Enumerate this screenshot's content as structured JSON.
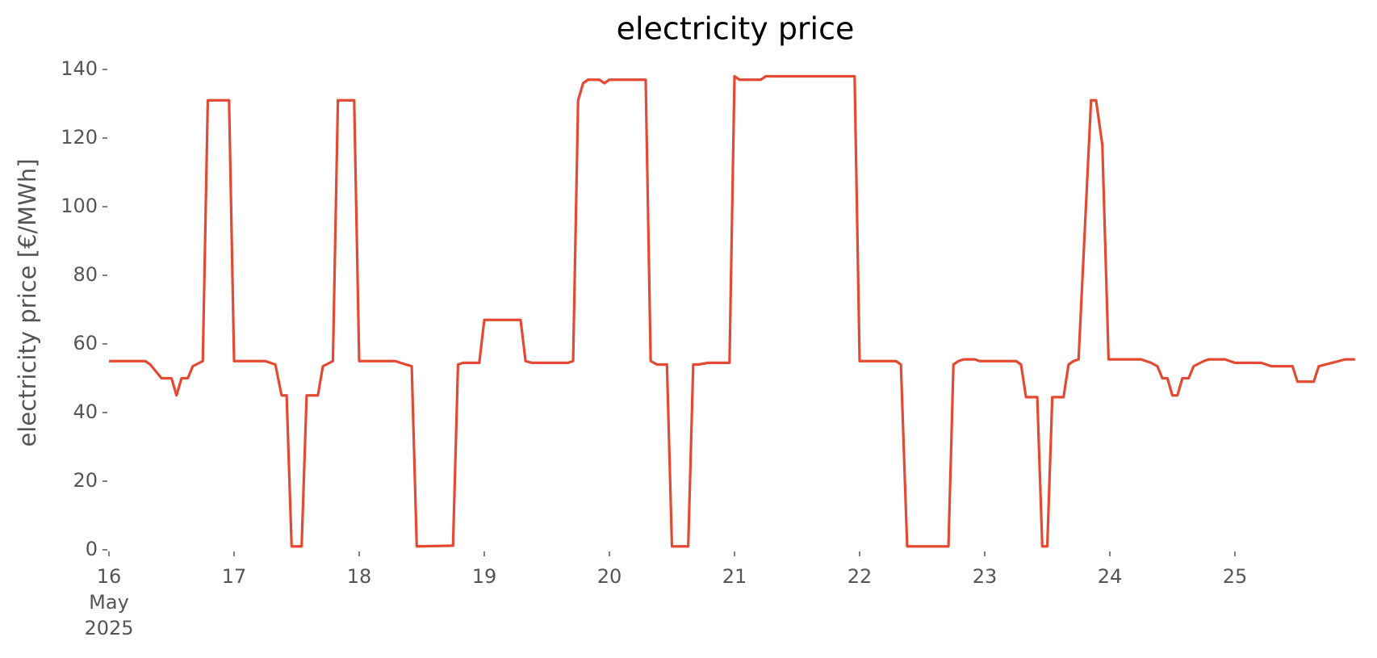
{
  "chart_data": {
    "type": "line",
    "title": "electricity price",
    "ylabel": "electricity price [€/MWh]",
    "color": "#e24a33",
    "grid": false,
    "x": [
      16.0,
      16.29,
      16.33,
      16.42,
      16.5,
      16.54,
      16.58,
      16.63,
      16.67,
      16.75,
      16.79,
      16.96,
      17.0,
      17.25,
      17.33,
      17.38,
      17.42,
      17.46,
      17.54,
      17.58,
      17.67,
      17.71,
      17.79,
      17.83,
      17.96,
      18.0,
      18.29,
      18.33,
      18.42,
      18.46,
      18.75,
      18.79,
      18.83,
      18.96,
      19.0,
      19.29,
      19.33,
      19.38,
      19.67,
      19.71,
      19.75,
      19.79,
      19.83,
      19.92,
      19.96,
      20.0,
      20.29,
      20.33,
      20.38,
      20.46,
      20.5,
      20.63,
      20.67,
      20.71,
      20.79,
      20.96,
      21.0,
      21.04,
      21.21,
      21.25,
      21.96,
      22.0,
      22.29,
      22.33,
      22.38,
      22.71,
      22.75,
      22.79,
      22.83,
      22.92,
      22.96,
      23.25,
      23.29,
      23.33,
      23.42,
      23.46,
      23.5,
      23.54,
      23.63,
      23.67,
      23.71,
      23.75,
      23.85,
      23.89,
      23.94,
      23.99,
      24.25,
      24.33,
      24.38,
      24.42,
      24.46,
      24.5,
      24.54,
      24.58,
      24.63,
      24.67,
      24.75,
      24.79,
      24.92,
      24.96,
      25.0,
      25.21,
      25.29,
      25.46,
      25.5,
      25.63,
      25.67,
      25.83,
      25.88,
      25.96
    ],
    "values": [
      55,
      55,
      54,
      50,
      50,
      45,
      50,
      50,
      53.5,
      55,
      131,
      131,
      55,
      55,
      54,
      45,
      45,
      1,
      1,
      45,
      45,
      53.5,
      55,
      131,
      131,
      55,
      55,
      54.5,
      53.5,
      1,
      1.2,
      54,
      54.5,
      54.5,
      67,
      67,
      55,
      54.5,
      54.5,
      55,
      131,
      136,
      137,
      137,
      136,
      137,
      137,
      55,
      54,
      54,
      1,
      1,
      54,
      54,
      54.5,
      54.5,
      138,
      137,
      137,
      138,
      138,
      55,
      55,
      54,
      1,
      1,
      54,
      55,
      55.5,
      55.5,
      55,
      55,
      54,
      44.5,
      44.5,
      1,
      1,
      44.5,
      44.5,
      54,
      55,
      55.5,
      131,
      131,
      118,
      55.5,
      55.5,
      54.5,
      53.5,
      50,
      50,
      45,
      45,
      50,
      50,
      53.5,
      55,
      55.5,
      55.5,
      55,
      54.5,
      54.5,
      53.5,
      53.5,
      49,
      49,
      53.5,
      55,
      55.5,
      55.5
    ],
    "xlim": [
      16,
      26
    ],
    "xticks": [
      {
        "value": 16,
        "label": "16\nMay\n2025"
      },
      17,
      18,
      19,
      20,
      21,
      22,
      23,
      24,
      25
    ],
    "ylim": [
      0,
      140
    ],
    "yticks": [
      0,
      20,
      40,
      60,
      80,
      100,
      120,
      140
    ]
  }
}
